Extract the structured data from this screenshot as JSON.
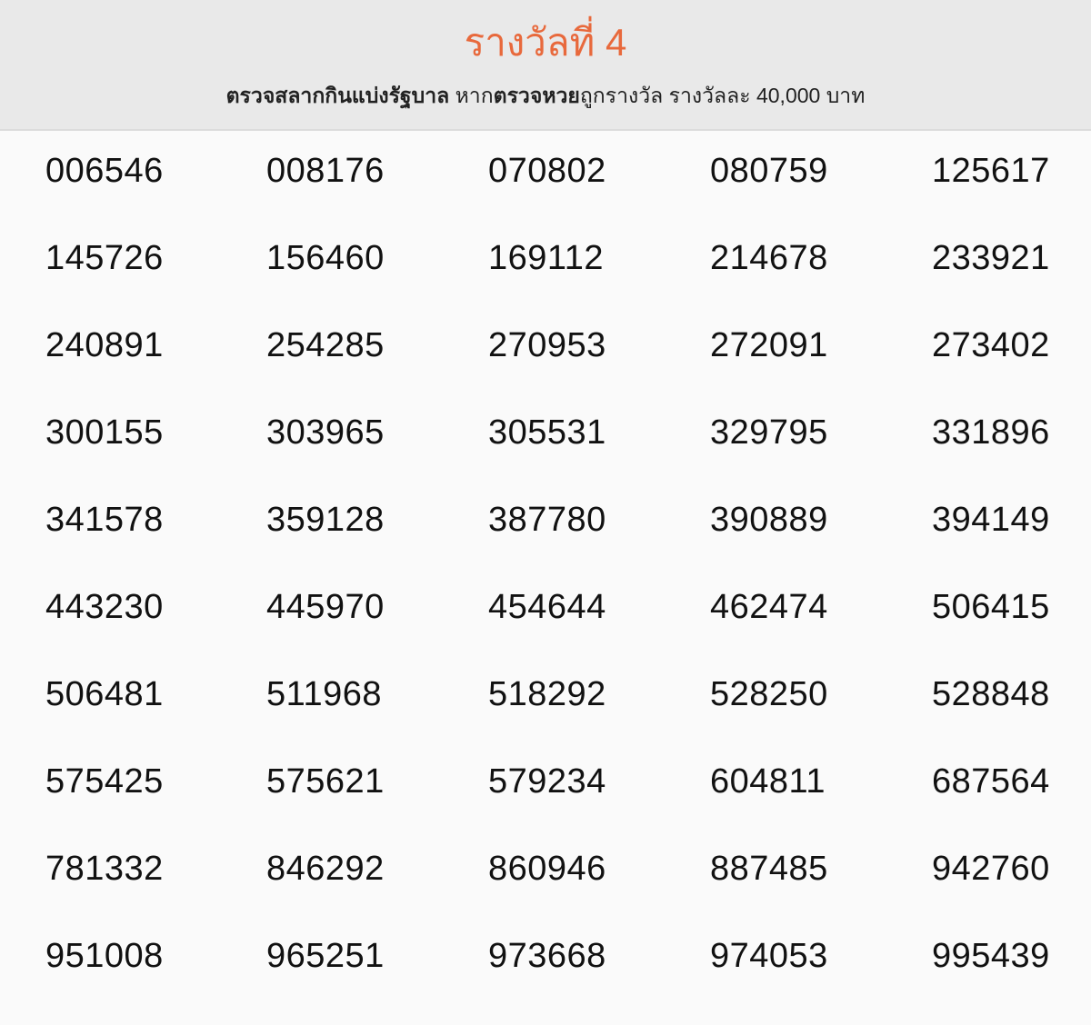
{
  "header": {
    "title": "รางวัลที่ 4",
    "subtitle_parts": [
      {
        "text": "ตรวจสลากกินแบ่งรัฐบาล",
        "bold": true
      },
      {
        "text": " หาก",
        "bold": false
      },
      {
        "text": "ตรวจหวย",
        "bold": true
      },
      {
        "text": "ถูกรางวัล รางวัลละ 40,000 บาท",
        "bold": false
      }
    ]
  },
  "numbers": [
    [
      "006546",
      "008176",
      "070802",
      "080759",
      "125617"
    ],
    [
      "145726",
      "156460",
      "169112",
      "214678",
      "233921"
    ],
    [
      "240891",
      "254285",
      "270953",
      "272091",
      "273402"
    ],
    [
      "300155",
      "303965",
      "305531",
      "329795",
      "331896"
    ],
    [
      "341578",
      "359128",
      "387780",
      "390889",
      "394149"
    ],
    [
      "443230",
      "445970",
      "454644",
      "462474",
      "506415"
    ],
    [
      "506481",
      "511968",
      "518292",
      "528250",
      "528848"
    ],
    [
      "575425",
      "575621",
      "579234",
      "604811",
      "687564"
    ],
    [
      "781332",
      "846292",
      "860946",
      "887485",
      "942760"
    ],
    [
      "951008",
      "965251",
      "973668",
      "974053",
      "995439"
    ]
  ],
  "colors": {
    "accent": "#e8693c",
    "header_bg": "#e9e9e9",
    "body_bg": "#fafafa"
  }
}
